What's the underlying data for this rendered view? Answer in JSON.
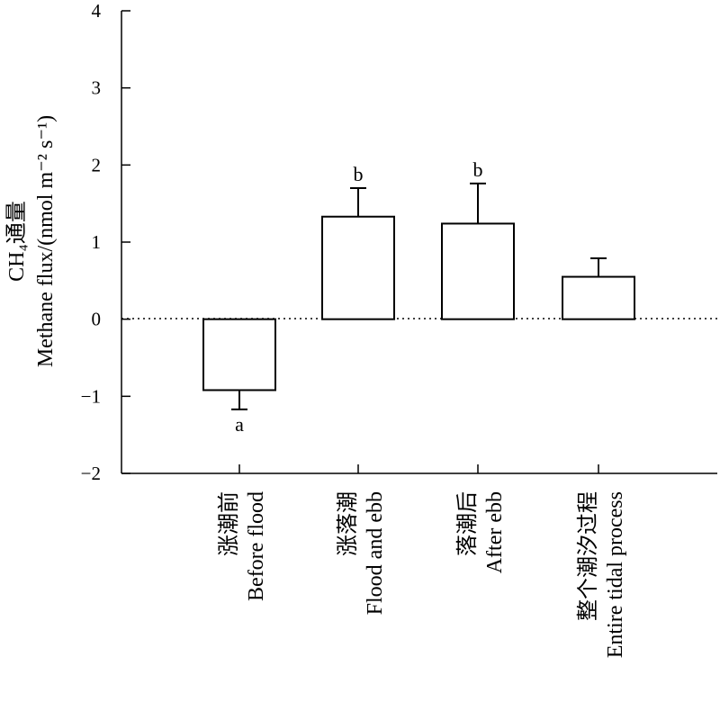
{
  "chart_data": {
    "type": "bar",
    "categories": [
      {
        "zh": "涨潮前",
        "en": "Before flood"
      },
      {
        "zh": "涨落潮",
        "en": "Flood and ebb"
      },
      {
        "zh": "落潮后",
        "en": "After ebb"
      },
      {
        "zh": "整个潮汐过程",
        "en": "Entire tidal process"
      }
    ],
    "values": [
      -0.92,
      1.33,
      1.24,
      0.55
    ],
    "error_upper": [
      0.25,
      0.37,
      0.52,
      0.24
    ],
    "significance": [
      "a",
      "b",
      "b",
      ""
    ],
    "ylabel_zh": "CH₄通量",
    "ylabel_en": "Methane flux/(nmol m⁻² s⁻¹)",
    "ylim": [
      -2,
      4
    ],
    "yticks": [
      "−2",
      "−1",
      "0",
      "1",
      "2",
      "3",
      "4"
    ],
    "zero_line": "dotted",
    "grid": false,
    "colors": {
      "bar_fill": "#ffffff",
      "bar_stroke": "#000000"
    }
  }
}
